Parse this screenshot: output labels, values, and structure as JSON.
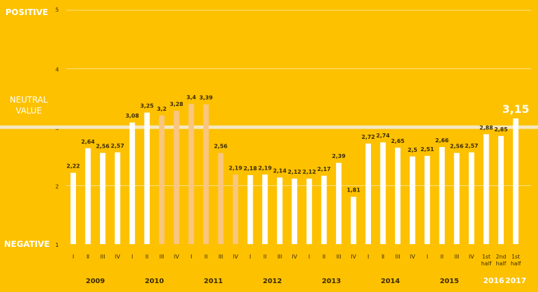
{
  "chart_data": {
    "type": "bar",
    "axis": {
      "positive_label": "POSITIVE",
      "negative_label": "NEGATIVE",
      "neutral_label_line1": "NEUTRAL",
      "neutral_label_line2": "VALUE",
      "ylim": [
        1,
        5
      ],
      "yticks": [
        "1",
        "2",
        "3",
        "4",
        "5"
      ],
      "neutral_value": 3
    },
    "colors": {
      "background": "#FDC100",
      "bar": "#FFFFFF",
      "bar_highlight": "#F9C67E",
      "neutral_line": "#F4E8C2",
      "grid": "#FFE38A",
      "text": "#3A2A00",
      "neutral_text": "#FFFFFF"
    },
    "bars": [
      {
        "label": "I",
        "value": 2.22,
        "value_label": "2,22",
        "highlight": false
      },
      {
        "label": "II",
        "value": 2.64,
        "value_label": "2,64",
        "highlight": false
      },
      {
        "label": "III",
        "value": 2.56,
        "value_label": "2,56",
        "highlight": false
      },
      {
        "label": "IV",
        "value": 2.57,
        "value_label": "2,57",
        "highlight": false
      },
      {
        "label": "I",
        "value": 3.08,
        "value_label": "3,08",
        "highlight": false
      },
      {
        "label": "II",
        "value": 3.25,
        "value_label": "3,25",
        "highlight": false
      },
      {
        "label": "III",
        "value": 3.2,
        "value_label": "3,2",
        "highlight": true
      },
      {
        "label": "IV",
        "value": 3.28,
        "value_label": "3,28",
        "highlight": true
      },
      {
        "label": "I",
        "value": 3.4,
        "value_label": "3,4",
        "highlight": true
      },
      {
        "label": "II",
        "value": 3.39,
        "value_label": "3,39",
        "highlight": true
      },
      {
        "label": "III",
        "value": 2.56,
        "value_label": "2,56",
        "highlight": true
      },
      {
        "label": "IV",
        "value": 2.19,
        "value_label": "2,19",
        "highlight": true
      },
      {
        "label": "I",
        "value": 2.18,
        "value_label": "2,18",
        "highlight": false
      },
      {
        "label": "II",
        "value": 2.19,
        "value_label": "2,19",
        "highlight": false
      },
      {
        "label": "III",
        "value": 2.14,
        "value_label": "2,14",
        "highlight": false
      },
      {
        "label": "IV",
        "value": 2.12,
        "value_label": "2,12",
        "highlight": false
      },
      {
        "label": "I",
        "value": 2.12,
        "value_label": "2,12",
        "highlight": false
      },
      {
        "label": "II",
        "value": 2.17,
        "value_label": "2,17",
        "highlight": false
      },
      {
        "label": "III",
        "value": 2.39,
        "value_label": "2,39",
        "highlight": false
      },
      {
        "label": "IV",
        "value": 1.81,
        "value_label": "1,81",
        "highlight": false
      },
      {
        "label": "I",
        "value": 2.72,
        "value_label": "2,72",
        "highlight": false
      },
      {
        "label": "II",
        "value": 2.74,
        "value_label": "2,74",
        "highlight": false
      },
      {
        "label": "III",
        "value": 2.65,
        "value_label": "2,65",
        "highlight": false
      },
      {
        "label": "IV",
        "value": 2.5,
        "value_label": "2,5",
        "highlight": false
      },
      {
        "label": "I",
        "value": 2.51,
        "value_label": "2,51",
        "highlight": false
      },
      {
        "label": "II",
        "value": 2.66,
        "value_label": "2,66",
        "highlight": false
      },
      {
        "label": "III",
        "value": 2.56,
        "value_label": "2,56",
        "highlight": false
      },
      {
        "label": "IV",
        "value": 2.57,
        "value_label": "2,57",
        "highlight": false
      },
      {
        "label": "1st half",
        "value": 2.88,
        "value_label": "2,88",
        "highlight": false
      },
      {
        "label": "2nd half",
        "value": 2.85,
        "value_label": "2,85",
        "highlight": false
      },
      {
        "label": "1st half",
        "value": 3.15,
        "value_label": "3,15",
        "highlight": false,
        "emphasis": true
      }
    ],
    "years": [
      {
        "label": "2009",
        "first": 0,
        "last": 3
      },
      {
        "label": "2010",
        "first": 4,
        "last": 7
      },
      {
        "label": "2011",
        "first": 8,
        "last": 11
      },
      {
        "label": "2012",
        "first": 12,
        "last": 15
      },
      {
        "label": "2013",
        "first": 16,
        "last": 19
      },
      {
        "label": "2014",
        "first": 20,
        "last": 23
      },
      {
        "label": "2015",
        "first": 24,
        "last": 27
      },
      {
        "label": "2016",
        "first": 28,
        "last": 29
      },
      {
        "label": "2017",
        "first": 30,
        "last": 30
      }
    ]
  }
}
